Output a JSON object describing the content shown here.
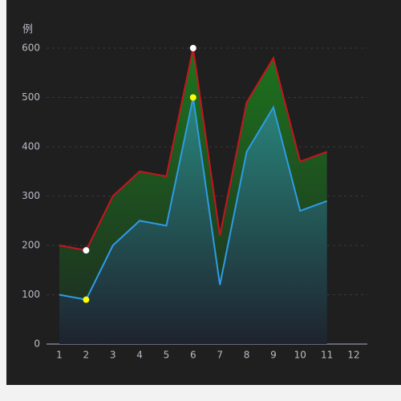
{
  "chart_data": {
    "type": "line",
    "y_label": "例",
    "categories": [
      1,
      2,
      3,
      4,
      5,
      6,
      7,
      8,
      9,
      10,
      11,
      12
    ],
    "series": [
      {
        "color": "#c8141e",
        "area_top": "#1d7d1d",
        "area_bottom": "#1e2a22",
        "marker_color": "#ffffff",
        "values": [
          200,
          190,
          300,
          350,
          340,
          600,
          220,
          490,
          580,
          370,
          390,
          null
        ]
      },
      {
        "color": "#2e9be8",
        "area_top": "#2a8a86",
        "area_bottom": "#1e2230",
        "marker_color": "#ffff00",
        "values": [
          100,
          90,
          200,
          250,
          240,
          500,
          120,
          390,
          480,
          270,
          290,
          null
        ]
      }
    ],
    "markers": [
      "min",
      "max"
    ],
    "ylim": [
      0,
      600
    ],
    "yticks": [
      0,
      100,
      200,
      300,
      400,
      500,
      600
    ],
    "grid": true
  }
}
